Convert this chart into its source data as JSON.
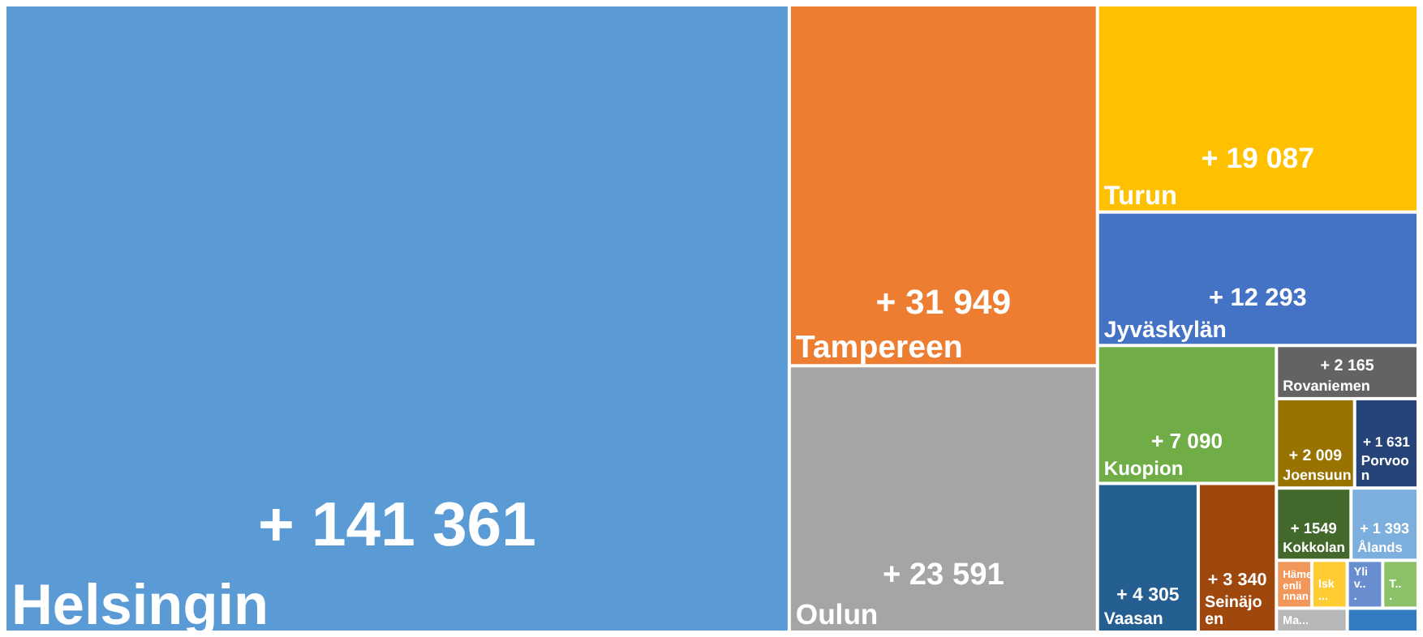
{
  "chart_data": {
    "type": "other",
    "categories": [
      "Helsingin",
      "Tampereen",
      "Oulun",
      "Turun",
      "Jyväskylän",
      "Kuopion",
      "Vaasan",
      "Seinäjoen",
      "Rovaniemen",
      "Joensuun",
      "Porvoon",
      "Kokkolan",
      "Ålands",
      "Hämeenlinnan",
      "Isk...",
      "Ma...",
      "Yliv...",
      "T...",
      null
    ],
    "values": [
      141361,
      31949,
      23591,
      19087,
      12293,
      7090,
      4305,
      3340,
      2165,
      2009,
      1631,
      1549,
      1393,
      null,
      null,
      null,
      null,
      null,
      null
    ],
    "value_labels": [
      "+ 141 361",
      "+ 31 949",
      "+ 23 591",
      "+ 19 087",
      "+ 12 293",
      "+ 7 090",
      "+ 4 305",
      "+ 3 340",
      "+ 2 165",
      "+ 2 009",
      "+ 1 631",
      "+ 1549",
      "+ 1 393",
      null,
      null,
      null,
      null,
      null,
      null
    ],
    "colors": [
      "#5b9bd5",
      "#ed7d31",
      "#a5a5a5",
      "#ffc000",
      "#4472c4",
      "#70ad47",
      "#255e91",
      "#9e480e",
      "#636363",
      "#997300",
      "#264478",
      "#43682b",
      "#7cafdd",
      "#f1975a",
      "#ffcd33",
      "#b7b7b7",
      "#698ed0",
      "#8cc168",
      "#327dc2"
    ]
  }
}
